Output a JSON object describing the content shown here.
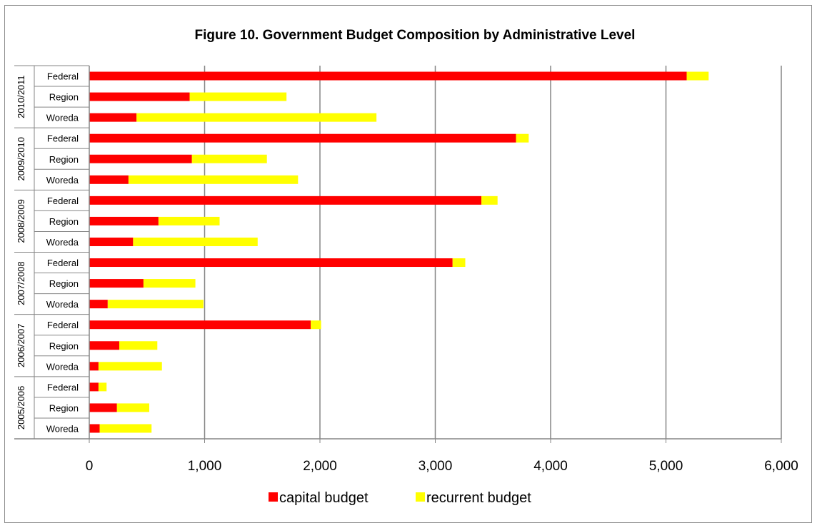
{
  "chart_data": {
    "type": "bar",
    "orientation": "horizontal",
    "stacked": true,
    "title": "Figure 10. Government Budget Composition by Administrative Level",
    "xlabel": "",
    "ylabel": "",
    "xlim": [
      0,
      6000
    ],
    "x_ticks": [
      "0",
      "1,000",
      "2,000",
      "3,000",
      "4,000",
      "5,000",
      "6,000"
    ],
    "grid": true,
    "legend_position": "bottom",
    "groups": [
      {
        "label": "2010/2011",
        "categories": [
          "Federal",
          "Region",
          "Woreda"
        ]
      },
      {
        "label": "2009/2010",
        "categories": [
          "Federal",
          "Region",
          "Woreda"
        ]
      },
      {
        "label": "2008/2009",
        "categories": [
          "Federal",
          "Region",
          "Woreda"
        ]
      },
      {
        "label": "2007/2008",
        "categories": [
          "Federal",
          "Region",
          "Woreda"
        ]
      },
      {
        "label": "2006/2007",
        "categories": [
          "Federal",
          "Region",
          "Woreda"
        ]
      },
      {
        "label": "2005/2006",
        "categories": [
          "Federal",
          "Region",
          "Woreda"
        ]
      }
    ],
    "series": [
      {
        "name": "capital budget",
        "color": "#ff0000",
        "values": [
          5180,
          870,
          410,
          3700,
          890,
          340,
          3400,
          600,
          380,
          3150,
          470,
          160,
          1920,
          260,
          80,
          80,
          240,
          90
        ]
      },
      {
        "name": "recurrent budget",
        "color": "#ffff00",
        "values": [
          190,
          840,
          2080,
          110,
          650,
          1470,
          140,
          530,
          1080,
          110,
          450,
          830,
          90,
          330,
          550,
          70,
          280,
          450
        ]
      }
    ]
  }
}
